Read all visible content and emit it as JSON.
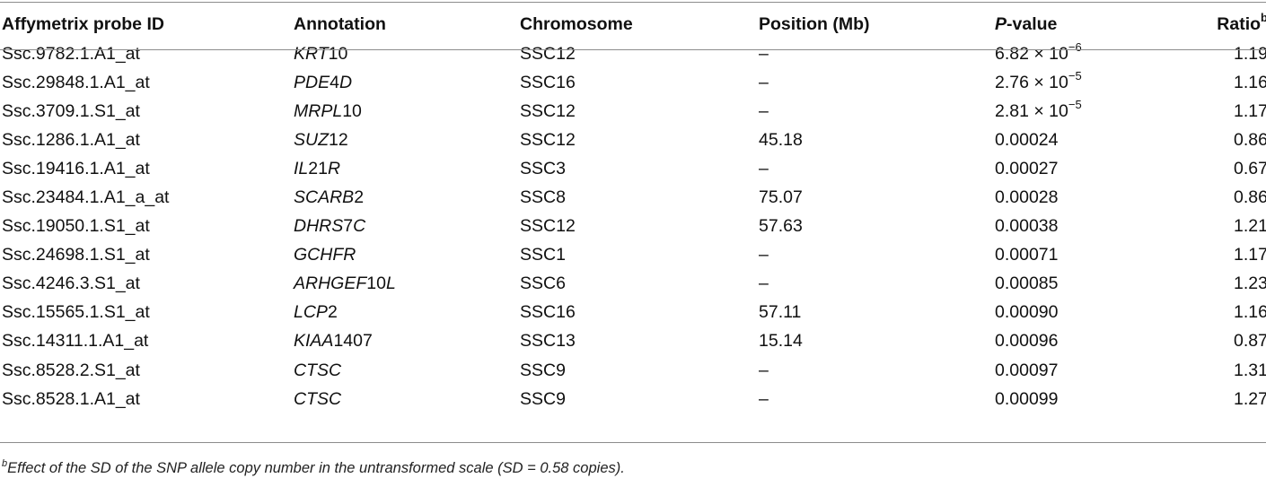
{
  "table": {
    "headers": {
      "probe_id": "Affymetrix probe ID",
      "annotation": "Annotation",
      "chromosome": "Chromosome",
      "position": "Position (Mb)",
      "pvalue_letter": "P",
      "pvalue_rest": "-value",
      "ratio": "Ratio",
      "ratio_sup": "b"
    },
    "rows": [
      {
        "probe": "Ssc.9782.1.A1_at",
        "gene_a": "KRT",
        "gene_b": "10",
        "gene_c": "",
        "chr": "SSC12",
        "pos": "–",
        "p": "6.82 × 10",
        "p_exp": "−6",
        "ratio": "1.19"
      },
      {
        "probe": "Ssc.29848.1.A1_at",
        "gene_a": "PDE",
        "gene_b": "4",
        "gene_c": "D",
        "chr": "SSC16",
        "pos": "–",
        "p": "2.76 × 10",
        "p_exp": "−5",
        "ratio": "1.16"
      },
      {
        "probe": "Ssc.3709.1.S1_at",
        "gene_a": "MRPL",
        "gene_b": "10",
        "gene_c": "",
        "chr": "SSC12",
        "pos": "–",
        "p": "2.81 × 10",
        "p_exp": "−5",
        "ratio": "1.17"
      },
      {
        "probe": "Ssc.1286.1.A1_at",
        "gene_a": "SUZ",
        "gene_b": "12",
        "gene_c": "",
        "chr": "SSC12",
        "pos": "45.18",
        "p": "0.00024",
        "p_exp": "",
        "ratio": "0.86"
      },
      {
        "probe": "Ssc.19416.1.A1_at",
        "gene_a": "IL",
        "gene_b": "21",
        "gene_c": "R",
        "chr": "SSC3",
        "pos": "–",
        "p": "0.00027",
        "p_exp": "",
        "ratio": "0.67"
      },
      {
        "probe": "Ssc.23484.1.A1_a_at",
        "gene_a": "SCARB",
        "gene_b": "2",
        "gene_c": "",
        "chr": "SSC8",
        "pos": "75.07",
        "p": "0.00028",
        "p_exp": "",
        "ratio": "0.86"
      },
      {
        "probe": "Ssc.19050.1.S1_at",
        "gene_a": "DHRS",
        "gene_b": "7",
        "gene_c": "C",
        "chr": "SSC12",
        "pos": "57.63",
        "p": "0.00038",
        "p_exp": "",
        "ratio": "1.21"
      },
      {
        "probe": "Ssc.24698.1.S1_at",
        "gene_a": "GCHFR",
        "gene_b": "",
        "gene_c": "",
        "chr": "SSC1",
        "pos": "–",
        "p": "0.00071",
        "p_exp": "",
        "ratio": "1.17"
      },
      {
        "probe": "Ssc.4246.3.S1_at",
        "gene_a": "ARHGEF",
        "gene_b": "10",
        "gene_c": "L",
        "chr": "SSC6",
        "pos": "–",
        "p": "0.00085",
        "p_exp": "",
        "ratio": "1.23"
      },
      {
        "probe": "Ssc.15565.1.S1_at",
        "gene_a": "LCP",
        "gene_b": "2",
        "gene_c": "",
        "chr": "SSC16",
        "pos": "57.11",
        "p": "0.00090",
        "p_exp": "",
        "ratio": "1.16"
      },
      {
        "probe": "Ssc.14311.1.A1_at",
        "gene_a": "KIAA",
        "gene_b": "1407",
        "gene_c": "",
        "chr": "SSC13",
        "pos": "15.14",
        "p": "0.00096",
        "p_exp": "",
        "ratio": "0.87"
      },
      {
        "probe": "Ssc.8528.2.S1_at",
        "gene_a": "CTSC",
        "gene_b": "",
        "gene_c": "",
        "chr": "SSC9",
        "pos": "–",
        "p": "0.00097",
        "p_exp": "",
        "ratio": "1.31"
      },
      {
        "probe": "Ssc.8528.1.A1_at",
        "gene_a": "CTSC",
        "gene_b": "",
        "gene_c": "",
        "chr": "SSC9",
        "pos": "–",
        "p": "0.00099",
        "p_exp": "",
        "ratio": "1.27"
      }
    ]
  },
  "footnote": {
    "marker": "b",
    "text": "Effect of the SD of the SNP allele copy number in the untransformed scale (SD = 0.58 copies)."
  }
}
